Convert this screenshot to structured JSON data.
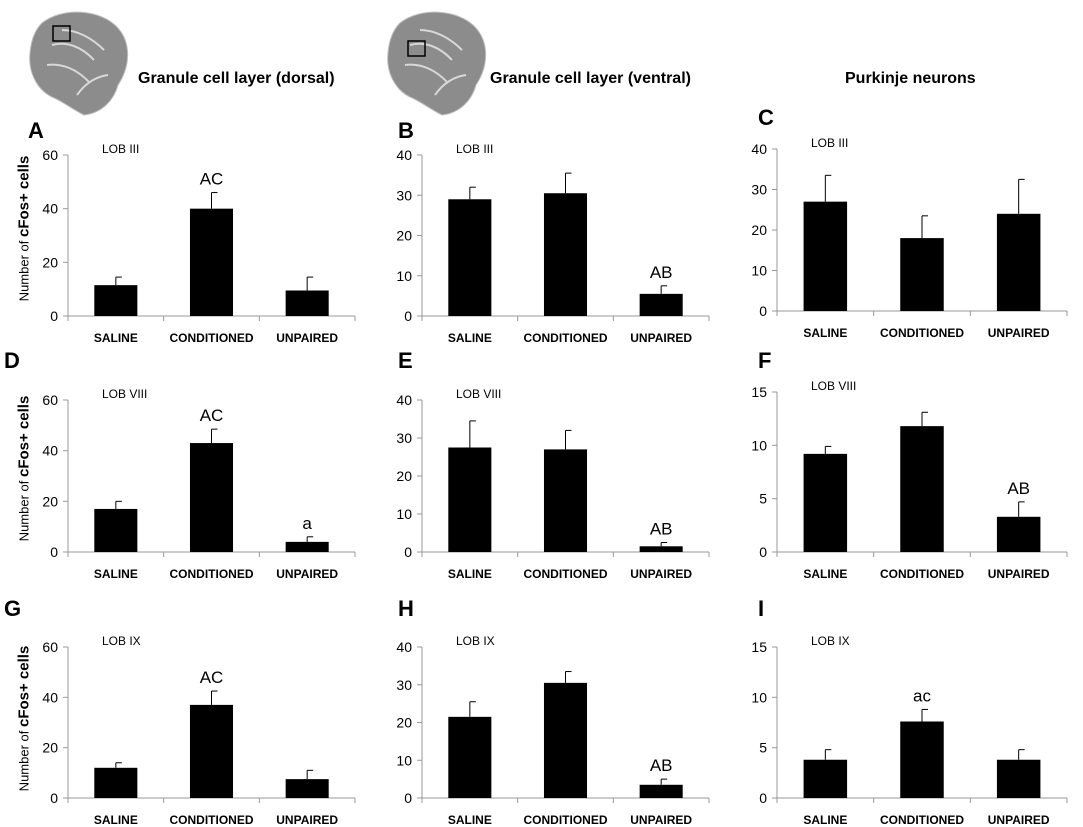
{
  "column_titles": [
    "Granule cell layer (dorsal)",
    "Granule cell layer (ventral)",
    "Purkinje neurons"
  ],
  "ylabel_prefix": "Number of ",
  "ylabel_bold": "cFos+ cells",
  "colors": {
    "bar": "#000000",
    "axis": "#999999",
    "brain": "#8c8c8c"
  },
  "chart_data": [
    {
      "panel": "A",
      "type": "bar",
      "title": "LOB III",
      "categories": [
        "SALINE",
        "CONDITIONED",
        "UNPAIRED"
      ],
      "values": [
        11.5,
        40,
        9.5
      ],
      "errors": [
        3,
        6,
        5
      ],
      "labels": [
        "",
        "AC",
        ""
      ],
      "ylim": [
        0,
        60
      ],
      "yticks": [
        0,
        20,
        40,
        60
      ]
    },
    {
      "panel": "B",
      "type": "bar",
      "title": "LOB III",
      "categories": [
        "SALINE",
        "CONDITIONED",
        "UNPAIRED"
      ],
      "values": [
        29,
        30.5,
        5.5
      ],
      "errors": [
        3,
        5,
        2
      ],
      "labels": [
        "",
        "",
        "AB"
      ],
      "ylim": [
        0,
        40
      ],
      "yticks": [
        0,
        10,
        20,
        30,
        40
      ]
    },
    {
      "panel": "C",
      "type": "bar",
      "title": "LOB III",
      "categories": [
        "SALINE",
        "CONDITIONED",
        "UNPAIRED"
      ],
      "values": [
        27,
        18,
        24
      ],
      "errors": [
        6.5,
        5.5,
        8.5
      ],
      "labels": [
        "",
        "",
        ""
      ],
      "ylim": [
        0,
        40
      ],
      "yticks": [
        0,
        10,
        20,
        30,
        40
      ]
    },
    {
      "panel": "D",
      "type": "bar",
      "title": "LOB VIII",
      "categories": [
        "SALINE",
        "CONDITIONED",
        "UNPAIRED"
      ],
      "values": [
        17,
        43,
        4
      ],
      "errors": [
        3,
        5.5,
        2
      ],
      "labels": [
        "",
        "AC",
        "a"
      ],
      "ylim": [
        0,
        60
      ],
      "yticks": [
        0,
        20,
        40,
        60
      ]
    },
    {
      "panel": "E",
      "type": "bar",
      "title": "LOB VIII",
      "categories": [
        "SALINE",
        "CONDITIONED",
        "UNPAIRED"
      ],
      "values": [
        27.5,
        27,
        1.5
      ],
      "errors": [
        7,
        5,
        1
      ],
      "labels": [
        "",
        "",
        "AB"
      ],
      "ylim": [
        0,
        40
      ],
      "yticks": [
        0,
        10,
        20,
        30,
        40
      ]
    },
    {
      "panel": "F",
      "type": "bar",
      "title": "LOB VIII",
      "categories": [
        "SALINE",
        "CONDITIONED",
        "UNPAIRED"
      ],
      "values": [
        9.2,
        11.8,
        3.3
      ],
      "errors": [
        0.7,
        1.3,
        1.4
      ],
      "labels": [
        "",
        "",
        "AB"
      ],
      "ylim": [
        0,
        15
      ],
      "yticks": [
        0,
        5,
        10,
        15
      ]
    },
    {
      "panel": "G",
      "type": "bar",
      "title": "LOB IX",
      "categories": [
        "SALINE",
        "CONDITIONED",
        "UNPAIRED"
      ],
      "values": [
        12,
        37,
        7.5
      ],
      "errors": [
        2,
        5.5,
        3.5
      ],
      "labels": [
        "",
        "AC",
        ""
      ],
      "ylim": [
        0,
        60
      ],
      "yticks": [
        0,
        20,
        40,
        60
      ]
    },
    {
      "panel": "H",
      "type": "bar",
      "title": "LOB IX",
      "categories": [
        "SALINE",
        "CONDITIONED",
        "UNPAIRED"
      ],
      "values": [
        21.5,
        30.5,
        3.5
      ],
      "errors": [
        4,
        3,
        1.5
      ],
      "labels": [
        "",
        "",
        "AB"
      ],
      "ylim": [
        0,
        40
      ],
      "yticks": [
        0,
        10,
        20,
        30,
        40
      ]
    },
    {
      "panel": "I",
      "type": "bar",
      "title": "LOB IX",
      "categories": [
        "SALINE",
        "CONDITIONED",
        "UNPAIRED"
      ],
      "values": [
        3.8,
        7.6,
        3.8
      ],
      "errors": [
        1,
        1.2,
        1
      ],
      "labels": [
        "",
        "ac",
        ""
      ],
      "ylim": [
        0,
        15
      ],
      "yticks": [
        0,
        5,
        10,
        15
      ]
    }
  ]
}
